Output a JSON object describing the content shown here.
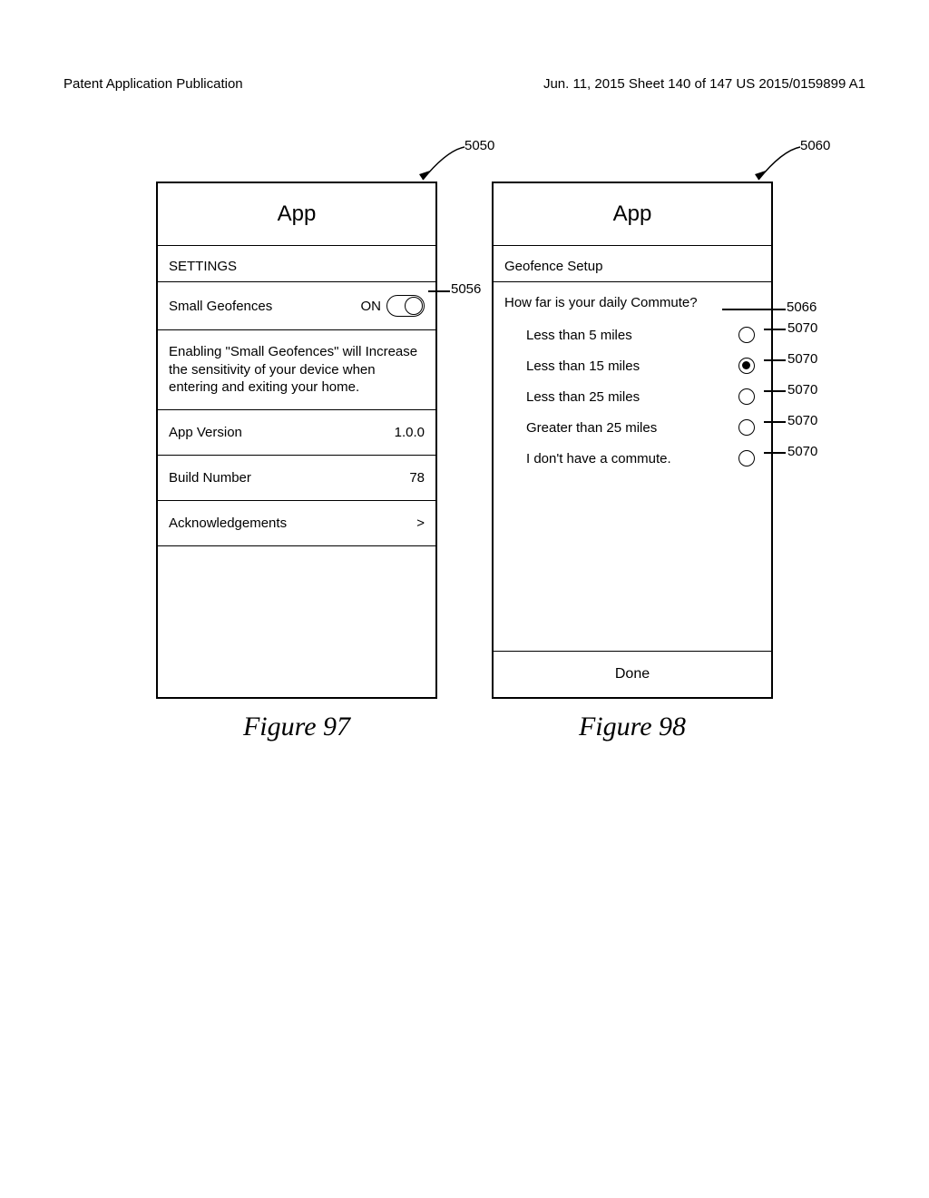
{
  "page_header": {
    "left": "Patent Application Publication",
    "right": "Jun. 11, 2015  Sheet 140 of 147   US 2015/0159899 A1"
  },
  "figure_left": {
    "callout_id": "5050",
    "title": "App",
    "settings_label": "SETTINGS",
    "toggle_row": {
      "label": "Small Geofences",
      "state_text": "ON",
      "callout_id": "5056"
    },
    "description": "Enabling \"Small Geofences\" will Increase the sensitivity of your device when entering and exiting your home.",
    "rows": [
      {
        "label": "App Version",
        "value": "1.0.0"
      },
      {
        "label": "Build Number",
        "value": "78"
      },
      {
        "label": "Acknowledgements",
        "value": ">"
      }
    ],
    "figure_label": "Figure 97"
  },
  "figure_right": {
    "callout_id": "5060",
    "title": "App",
    "section_label": "Geofence Setup",
    "question": "How far is your daily Commute?",
    "question_callout": "5066",
    "options": [
      {
        "label": "Less than 5 miles",
        "selected": false,
        "callout": "5070"
      },
      {
        "label": "Less than 15 miles",
        "selected": true,
        "callout": "5070"
      },
      {
        "label": "Less than 25 miles",
        "selected": false,
        "callout": "5070"
      },
      {
        "label": "Greater than 25 miles",
        "selected": false,
        "callout": "5070"
      },
      {
        "label": "I don't have a commute.",
        "selected": false,
        "callout": "5070"
      }
    ],
    "done_label": "Done",
    "figure_label": "Figure 98"
  },
  "colors": {
    "border": "#000000",
    "background": "#ffffff",
    "text": "#000000"
  }
}
